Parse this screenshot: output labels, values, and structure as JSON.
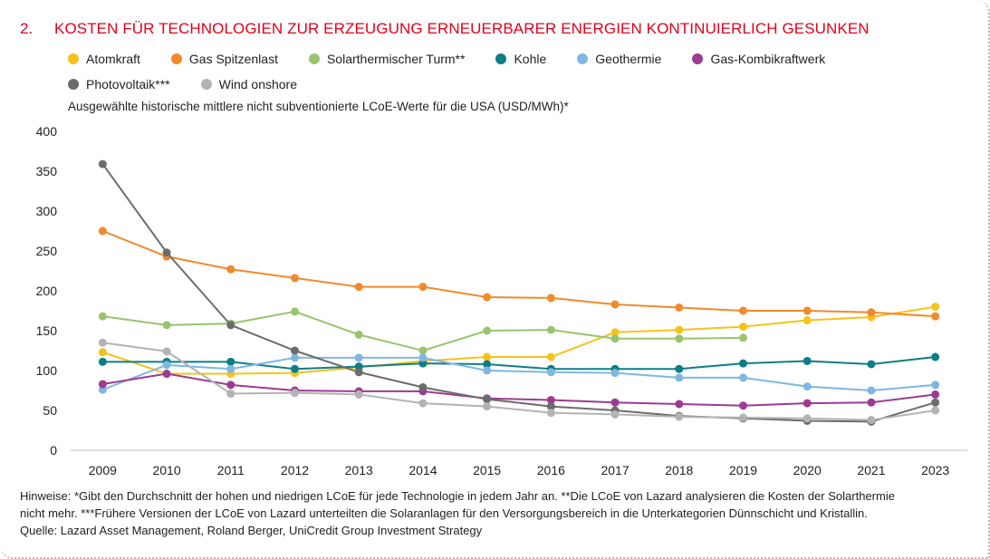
{
  "header": {
    "number": "2.",
    "title": "KOSTEN FÜR TECHNOLOGIEN ZUR ERZEUGUNG ERNEUERBARER ENERGIEN KONTINUIERLICH GESUNKEN"
  },
  "chart_data": {
    "type": "line",
    "subtitle": "Ausgewählte historische mittlere nicht subventionierte LCoE-Werte für die USA (USD/MWh)*",
    "xlabel": "",
    "ylabel": "",
    "ylim": [
      0,
      400
    ],
    "yticks": [
      0,
      50,
      100,
      150,
      200,
      250,
      300,
      350,
      400
    ],
    "grid": false,
    "legend_position": "top",
    "categories": [
      "2009",
      "2010",
      "2011",
      "2012",
      "2013",
      "2014",
      "2015",
      "2016",
      "2017",
      "2018",
      "2019",
      "2020",
      "2021",
      "2023"
    ],
    "series": [
      {
        "name": "Atomkraft",
        "color": "#f6c21c",
        "values": [
          123,
          96,
          96,
          97,
          104,
          112,
          117,
          117,
          148,
          151,
          155,
          163,
          167,
          180
        ]
      },
      {
        "name": "Gas Spitzenlast",
        "color": "#f08a2c",
        "values": [
          275,
          243,
          227,
          216,
          205,
          205,
          192,
          191,
          183,
          179,
          175,
          175,
          173,
          168
        ]
      },
      {
        "name": "Solarthermischer Turm**",
        "color": "#98c46e",
        "values": [
          168,
          157,
          159,
          174,
          145,
          125,
          150,
          151,
          140,
          140,
          141,
          null,
          null,
          null
        ]
      },
      {
        "name": "Kohle",
        "color": "#0d7e85",
        "values": [
          111,
          111,
          111,
          102,
          105,
          109,
          108,
          102,
          102,
          102,
          109,
          112,
          108,
          117
        ]
      },
      {
        "name": "Geothermie",
        "color": "#7fb7e2",
        "values": [
          76,
          107,
          102,
          116,
          116,
          116,
          100,
          98,
          97,
          91,
          91,
          80,
          75,
          82
        ]
      },
      {
        "name": "Gas-Kombikraftwerk",
        "color": "#9c3b92",
        "values": [
          83,
          96,
          82,
          75,
          74,
          74,
          65,
          63,
          60,
          58,
          56,
          59,
          60,
          70
        ]
      },
      {
        "name": "Photovoltaik***",
        "color": "#6c6c6c",
        "values": [
          359,
          248,
          157,
          125,
          98,
          79,
          64,
          55,
          50,
          43,
          40,
          37,
          36,
          60
        ]
      },
      {
        "name": "Wind onshore",
        "color": "#b3b3b3",
        "values": [
          135,
          124,
          71,
          72,
          70,
          59,
          55,
          47,
          45,
          42,
          41,
          40,
          38,
          50
        ]
      }
    ]
  },
  "notes": {
    "line1": "Hinweise: *Gibt den Durchschnitt der hohen und niedrigen LCoE für jede Technologie in jedem Jahr an. **Die LCoE von Lazard analysieren die Kosten der Solarthermie",
    "line2": "nicht mehr. ***Frühere Versionen der LCoE von Lazard unterteilten die Solaranlagen für den Versorgungsbereich in die Unterkategorien Dünnschicht und Kristallin.",
    "source": "Quelle: Lazard Asset Management, Roland Berger, UniCredit Group Investment Strategy"
  }
}
